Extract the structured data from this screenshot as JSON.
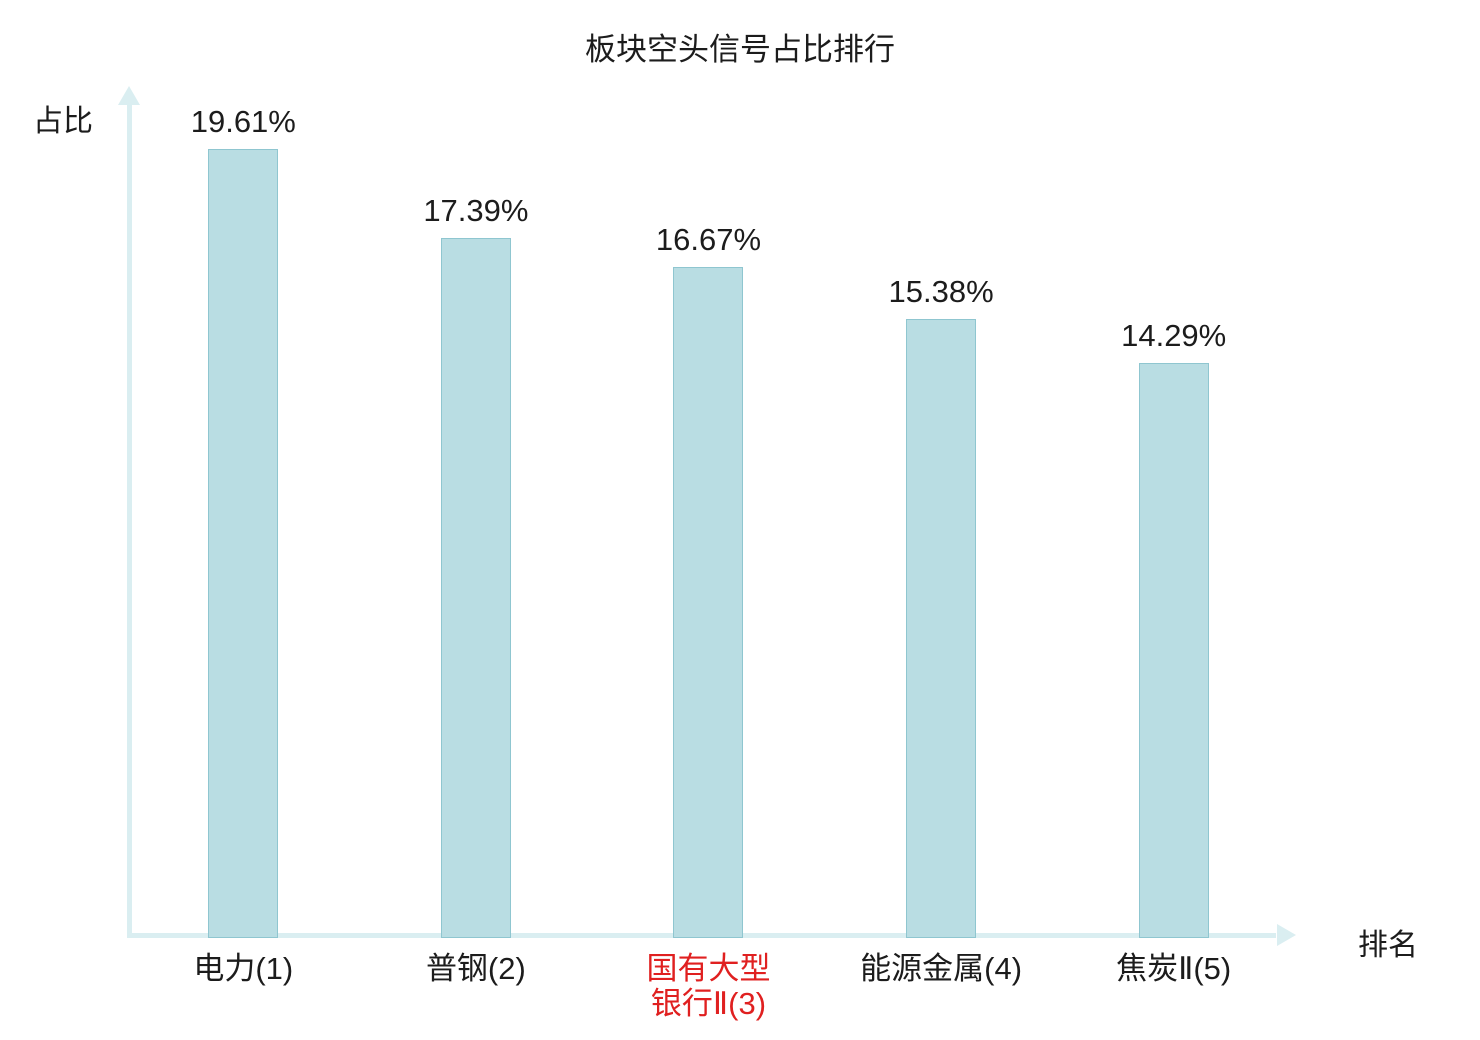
{
  "colors": {
    "bar_fill": "#b9dde3",
    "bar_border": "#8fc6d0",
    "axis": "#daeef1",
    "text": "#1c1c1c",
    "highlight": "#e02020"
  },
  "chart_data": {
    "type": "bar",
    "title": "板块空头信号占比排行",
    "xlabel": "排名",
    "ylabel": "占比",
    "categories": [
      "电力(1)",
      "普钢(2)",
      "国有大型\n银行Ⅱ(3)",
      "能源金属(4)",
      "焦炭Ⅱ(5)"
    ],
    "values": [
      19.61,
      17.39,
      16.67,
      15.38,
      14.29
    ],
    "value_labels": [
      "19.61%",
      "17.39%",
      "16.67%",
      "15.38%",
      "14.29%"
    ],
    "ylim": [
      0,
      21
    ],
    "highlighted_category_index": 2,
    "grid": false,
    "legend": "none"
  }
}
